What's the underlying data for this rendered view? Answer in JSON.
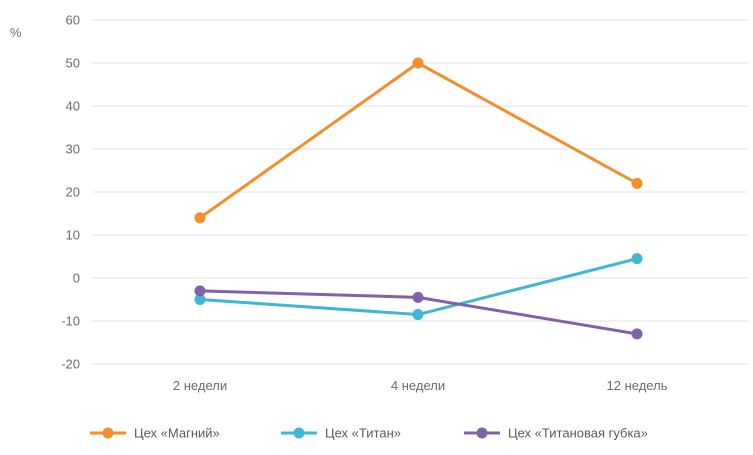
{
  "chart_data": {
    "type": "line",
    "ylabel": "%",
    "categories": [
      "2 недели",
      "4 недели",
      "12 недель"
    ],
    "ylim": [
      -20,
      60
    ],
    "yticks": [
      -20,
      -10,
      0,
      10,
      20,
      30,
      40,
      50,
      60
    ],
    "grid": true,
    "legend_position": "bottom",
    "series": [
      {
        "name": "Цех «Магний»",
        "color": "#F28E2B",
        "values": [
          14,
          50,
          22
        ]
      },
      {
        "name": "Цех «Титан»",
        "color": "#3FB7D3",
        "values": [
          -5,
          -8.5,
          4.5
        ]
      },
      {
        "name": "Цех «Титановая губка»",
        "color": "#8062A8",
        "values": [
          -3,
          -4.5,
          -13
        ]
      }
    ]
  }
}
